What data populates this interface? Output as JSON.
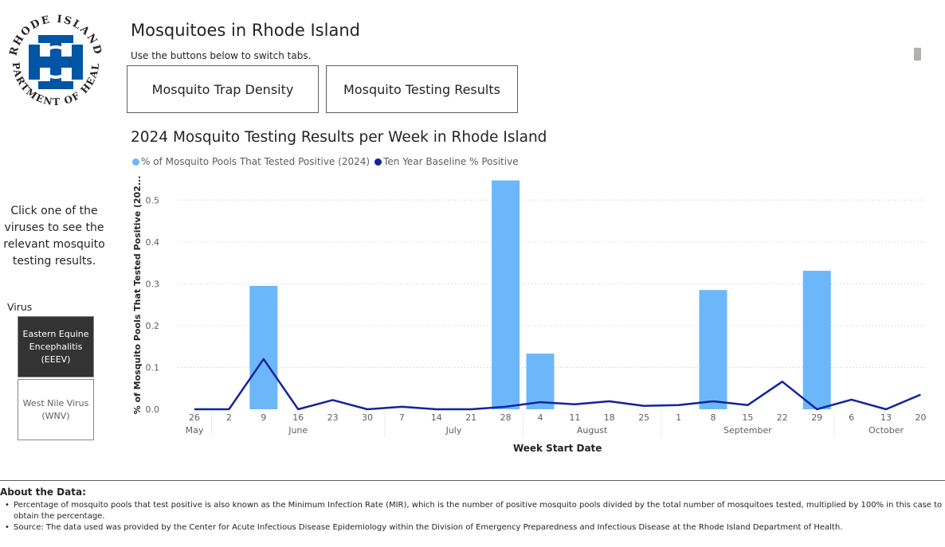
{
  "logo": {
    "text_top": "RHODE ISLAND",
    "text_bottom": "DEPARTMENT OF HEALTH",
    "colors": {
      "primary": "#0055a5"
    }
  },
  "header": {
    "title": "Mosquitoes in Rhode Island",
    "subtitle": "Use the buttons below to switch tabs."
  },
  "tabs": [
    {
      "label": "Mosquito Trap Density"
    },
    {
      "label": "Mosquito Testing Results"
    }
  ],
  "sidebar": {
    "instructions": "Click one of the viruses to see the relevant mosquito testing results.",
    "virus_label": "Virus",
    "viruses": [
      {
        "label": "Eastern Equine Encephalitis (EEEV)",
        "selected": true
      },
      {
        "label": "West Nile Virus (WNV)",
        "selected": false
      }
    ]
  },
  "chart_data": {
    "type": "bar",
    "title": "2024 Mosquito Testing Results per Week in Rhode Island",
    "xlabel": "Week Start Date",
    "ylabel": "% of Mosquito Pools That Tested Positive (202...",
    "ylim": [
      0,
      0.55
    ],
    "yticks": [
      "0.0",
      "0.1",
      "0.2",
      "0.3",
      "0.4",
      "0.5"
    ],
    "grid": true,
    "legend_position": "top-left",
    "categories": [
      "26",
      "2",
      "9",
      "16",
      "23",
      "30",
      "7",
      "14",
      "21",
      "28",
      "4",
      "11",
      "18",
      "25",
      "1",
      "8",
      "15",
      "22",
      "29",
      "6",
      "13",
      "20"
    ],
    "months": [
      {
        "label": "May",
        "start": 0,
        "end": 0
      },
      {
        "label": "June",
        "start": 1,
        "end": 5
      },
      {
        "label": "July",
        "start": 6,
        "end": 9
      },
      {
        "label": "August",
        "start": 10,
        "end": 13
      },
      {
        "label": "September",
        "start": 14,
        "end": 18
      },
      {
        "label": "October",
        "start": 19,
        "end": 21
      }
    ],
    "series": [
      {
        "name": "% of Mosquito Pools That Tested Positive (2024)",
        "type": "bar",
        "color": "#6cb7fa",
        "values": [
          0,
          0,
          0.295,
          0,
          0,
          0,
          0,
          0,
          0,
          0.547,
          0.133,
          0,
          0,
          0,
          0,
          0.285,
          0,
          0,
          0.331,
          0,
          0,
          0
        ]
      },
      {
        "name": "Ten Year Baseline % Positive",
        "type": "line",
        "color": "#12239e",
        "values": [
          0,
          0,
          0.12,
          0,
          0.022,
          0,
          0.006,
          0,
          0,
          0.006,
          0.017,
          0.012,
          0.019,
          0.008,
          0.01,
          0.019,
          0.01,
          0.066,
          0,
          0.023,
          0,
          0.035
        ]
      }
    ]
  },
  "about": {
    "heading": "About the Data:",
    "bullets": [
      "Percentage of mosquito pools that test positive is also known as the Minimum Infection Rate (MIR), which is the number of positive mosquito pools divided by the total number of mosquitoes tested, multiplied by 100% in this case to obtain the percentage.",
      "Source: The data used was provided by the Center for Acute Infectious Disease Epidemiology within the Division of Emergency Preparedness and Infectious Disease at the Rhode Island Department of Health."
    ]
  }
}
